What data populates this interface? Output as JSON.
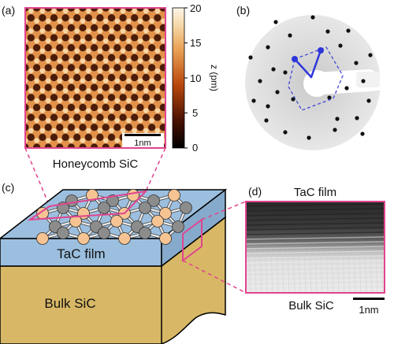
{
  "panels": {
    "a": {
      "label": "(a)",
      "caption": "Honeycomb SiC",
      "scalebar": "1nm",
      "colorbar": {
        "title": "z (pm)",
        "ticks": [
          "20",
          "15",
          "10",
          "5",
          "0"
        ],
        "min": 0,
        "max": 20
      }
    },
    "b": {
      "label": "(b)"
    },
    "c": {
      "label": "(c)",
      "film_label": "TaC film",
      "bulk_label": "Bulk SiC"
    },
    "d": {
      "label": "(d)",
      "top_label": "TaC film",
      "bottom_label": "Bulk SiC",
      "scalebar": "1nm"
    }
  },
  "colors": {
    "magenta": "#e0458f",
    "film_blue": "#9cbfdf",
    "film_side": "#86aacb",
    "bulk_tan": "#d8b866",
    "si_atom": "#8c8c8c",
    "c_atom": "#f6c493",
    "stm_low": "#3a0f02",
    "stm_high": "#f7dfb3",
    "leed_vector": "#2e35d9"
  }
}
